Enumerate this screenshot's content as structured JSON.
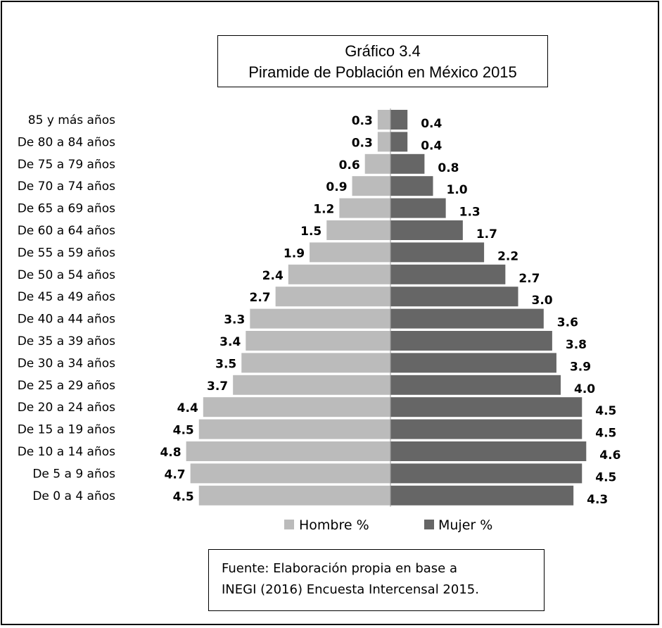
{
  "title_line1": "Gráfico 3.4",
  "title_line2": "Piramide de Población en México 2015",
  "source_line1": "Fuente: Elaboración propia en base a",
  "source_line2": "INEGI (2016) Encuesta Intercensal 2015.",
  "colors": {
    "hombre": "#bbbbbb",
    "mujer": "#666666"
  },
  "chart_data": {
    "type": "bar",
    "orientation": "horizontal-diverging",
    "categories": [
      "85 y más años",
      "De 80 a 84 años",
      "De 75 a 79 años",
      "De 70 a 74 años",
      "De 65 a 69 años",
      "De 60 a 64 años",
      "De 55 a 59 años",
      "De 50 a 54 años",
      "De 45 a 49 años",
      "De 40 a 44 años",
      "De 35 a 39 años",
      "De 30 a 34 años",
      "De 25 a 29 años",
      "De 20 a 24 años",
      "De 15 a 19 años",
      "De 10 a 14 años",
      "De 5 a 9 años",
      "De 0 a 4 años"
    ],
    "series": [
      {
        "name": "Hombre %",
        "values": [
          0.3,
          0.3,
          0.6,
          0.9,
          1.2,
          1.5,
          1.9,
          2.4,
          2.7,
          3.3,
          3.4,
          3.5,
          3.7,
          4.4,
          4.5,
          4.8,
          4.7,
          4.5
        ]
      },
      {
        "name": "Mujer %",
        "values": [
          0.4,
          0.4,
          0.8,
          1.0,
          1.3,
          1.7,
          2.2,
          2.7,
          3.0,
          3.6,
          3.8,
          3.9,
          4.0,
          4.5,
          4.5,
          4.6,
          4.5,
          4.3
        ]
      }
    ],
    "data_labels": {
      "hombre": [
        "0.3",
        "0.3",
        "0.6",
        "0.9",
        "1.2",
        "1.5",
        "1.9",
        "2.4",
        "2.7",
        "3.3",
        "3.4",
        "3.5",
        "3.7",
        "4.4",
        "4.5",
        "4.8",
        "4.7",
        "4.5"
      ],
      "mujer": [
        "0.4",
        "0.4",
        "0.8",
        "1.0",
        "1.3",
        "1.7",
        "2.2",
        "2.7",
        "3.0",
        "3.6",
        "3.8",
        "3.9",
        "4.0",
        "4.5",
        "4.5",
        "4.6",
        "4.5",
        "4.3"
      ]
    },
    "legend_position": "bottom",
    "grid": false
  }
}
